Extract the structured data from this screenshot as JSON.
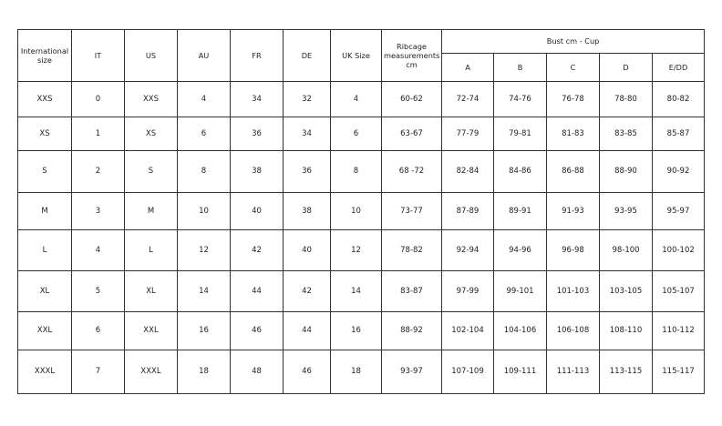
{
  "table": {
    "headers": [
      "International size",
      "IT",
      "US",
      "AU",
      "FR",
      "DE",
      "UK Size",
      "Ribcage measurements cm"
    ],
    "group_header": "Bust cm - Cup",
    "cups": [
      "A",
      "B",
      "C",
      "D",
      "E/DD"
    ],
    "rows": [
      [
        "XXS",
        "0",
        "XXS",
        "4",
        "34",
        "32",
        "4",
        "60-62",
        "72-74",
        "74-76",
        "76-78",
        "78-80",
        "80-82"
      ],
      [
        "XS",
        "1",
        "XS",
        "6",
        "36",
        "34",
        "6",
        "63-67",
        "77-79",
        "79-81",
        "81-83",
        "83-85",
        "85-87"
      ],
      [
        "S",
        "2",
        "S",
        "8",
        "38",
        "36",
        "8",
        "68 -72",
        "82-84",
        "84-86",
        "86-88",
        "88-90",
        "90-92"
      ],
      [
        "M",
        "3",
        "M",
        "10",
        "40",
        "38",
        "10",
        "73-77",
        "87-89",
        "89-91",
        "91-93",
        "93-95",
        "95-97"
      ],
      [
        "L",
        "4",
        "L",
        "12",
        "42",
        "40",
        "12",
        "78-82",
        "92-94",
        "94-96",
        "96-98",
        "98-100",
        "100-102"
      ],
      [
        "XL",
        "5",
        "XL",
        "14",
        "44",
        "42",
        "14",
        "83-87",
        "97-99",
        "99-101",
        "101-103",
        "103-105",
        "105-107"
      ],
      [
        "XXL",
        "6",
        "XXL",
        "16",
        "46",
        "44",
        "16",
        "88-92",
        "102-104",
        "104-106",
        "106-108",
        "108-110",
        "110-112"
      ],
      [
        "XXXL",
        "7",
        "XXXL",
        "18",
        "48",
        "46",
        "18",
        "93-97",
        "107-109",
        "109-111",
        "111-113",
        "113-115",
        "115-117"
      ]
    ]
  }
}
